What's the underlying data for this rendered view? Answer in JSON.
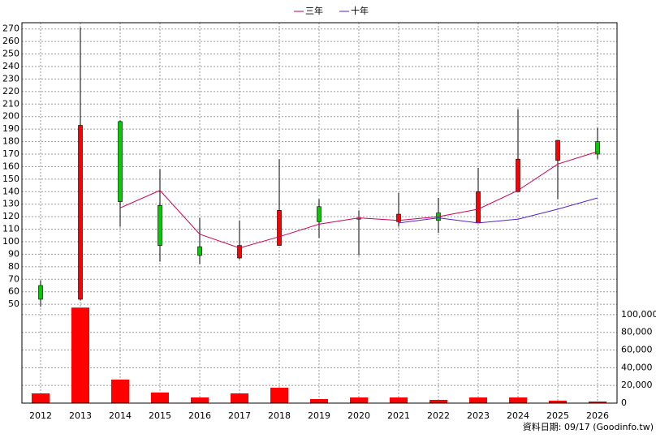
{
  "chart_data": {
    "type": "candlestick",
    "categories": [
      "2012",
      "2013",
      "2014",
      "2015",
      "2016",
      "2017",
      "2018",
      "2019",
      "2020",
      "2021",
      "2022",
      "2023",
      "2024",
      "2025",
      "2026"
    ],
    "open": [
      65,
      54,
      196,
      129,
      96,
      87,
      97,
      128,
      119,
      116,
      123,
      115,
      140,
      165,
      180
    ],
    "high": [
      69,
      271,
      197,
      158,
      119,
      117,
      166,
      134,
      125,
      139,
      135,
      159,
      206,
      181,
      191
    ],
    "low": [
      48,
      53,
      112,
      84,
      82,
      86,
      97,
      103,
      89,
      112,
      107,
      115,
      140,
      134,
      166
    ],
    "close": [
      54,
      193,
      132,
      97,
      89,
      97,
      125,
      116,
      118,
      122,
      117,
      140,
      166,
      181,
      170
    ],
    "up_color": "#ff0000",
    "down_color": "#00cc00",
    "series": [
      {
        "name": "三年",
        "color": "#cc0055",
        "values": [
          null,
          null,
          127,
          141,
          106,
          95,
          104,
          114,
          119,
          117,
          120,
          126,
          141,
          162,
          172
        ]
      },
      {
        "name": "十年",
        "color": "#5522cc",
        "values": [
          null,
          null,
          null,
          null,
          null,
          null,
          null,
          null,
          null,
          115,
          119,
          115,
          118,
          126,
          135
        ]
      }
    ],
    "ylim": [
      -29,
      275
    ],
    "yticks": [
      50,
      60,
      70,
      80,
      90,
      100,
      110,
      120,
      130,
      140,
      150,
      160,
      170,
      180,
      190,
      200,
      210,
      220,
      230,
      240,
      250,
      260,
      270
    ],
    "volume": {
      "color": "#ff0000",
      "values": [
        11000,
        108000,
        26600,
        12000,
        6400,
        11000,
        17400,
        4600,
        6400,
        6400,
        3700,
        6400,
        6400,
        2800,
        1800
      ],
      "ylim": [
        0,
        430000
      ],
      "yticks": [
        {
          "value": 0,
          "label": "0"
        },
        {
          "value": 20000,
          "label": "20,000"
        },
        {
          "value": 40000,
          "label": "40,000"
        },
        {
          "value": 60000,
          "label": "60,000"
        },
        {
          "value": 80000,
          "label": "80,000"
        },
        {
          "value": 100000,
          "label": "100,000"
        }
      ]
    },
    "grid": true,
    "footer": "資料日期: 09/17 (Goodinfo.tw)"
  }
}
